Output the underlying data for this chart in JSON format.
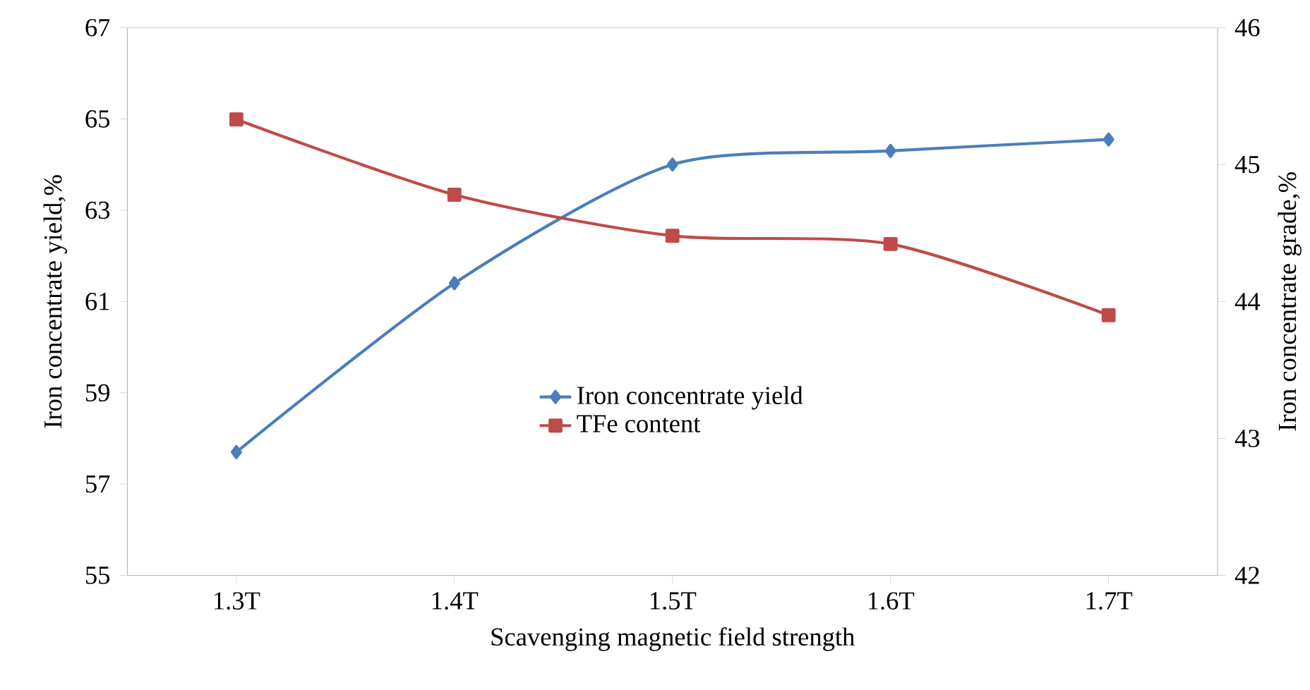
{
  "chart_data": {
    "type": "line",
    "xlabel": "Scavenging magnetic field strength",
    "ylabel": "Iron concentrate yield,%",
    "y2label": "Iron concentrate grade,%",
    "categories": [
      "1.3T",
      "1.4T",
      "1.5T",
      "1.6T",
      "1.7T"
    ],
    "series": [
      {
        "name": "Iron concentrate yield",
        "color": "#4a7ebb",
        "marker": "diamond",
        "values": [
          57.7,
          61.4,
          64.0,
          64.3,
          64.55
        ]
      },
      {
        "name": "TFe content",
        "color": "#be4b48",
        "marker": "square",
        "axis": "y2",
        "values": [
          45.33,
          44.78,
          44.48,
          44.42,
          43.9
        ]
      }
    ],
    "ylim": [
      55,
      67
    ],
    "yticks": [
      55,
      57,
      59,
      61,
      63,
      65,
      67
    ],
    "y2lim": [
      42,
      46
    ],
    "y2ticks": [
      42,
      43,
      44,
      45,
      46
    ],
    "grid": false,
    "legend": "center"
  }
}
